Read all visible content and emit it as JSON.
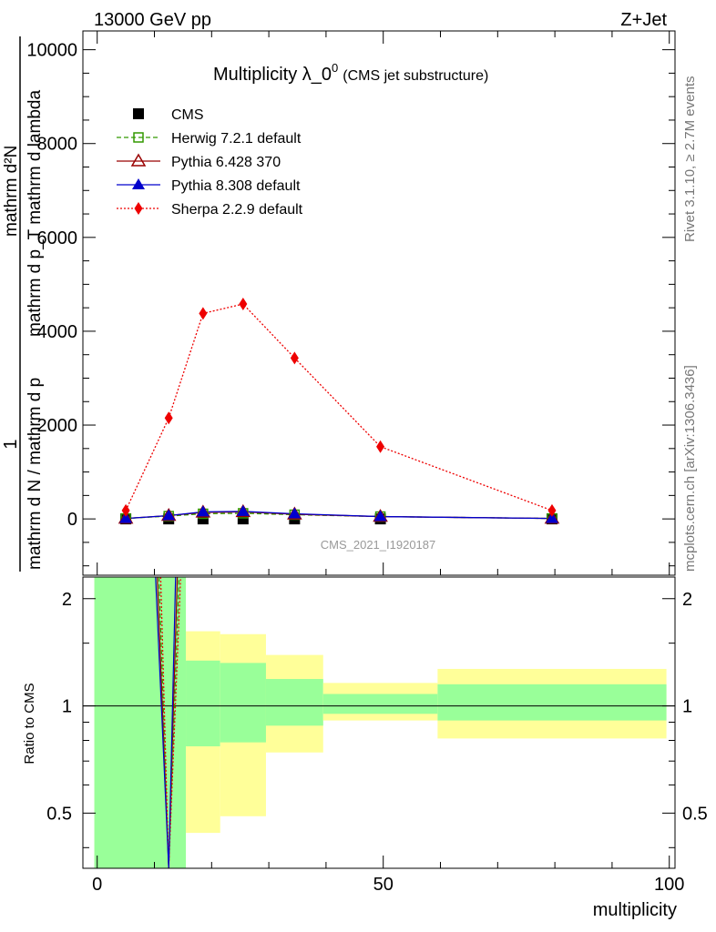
{
  "header": {
    "energy": "13000 GeV pp",
    "process": "Z+Jet"
  },
  "side_labels": {
    "rivet": "Rivet 3.1.10, ≥ 2.7M events",
    "mcplots": "mcplots.cern.ch [arXiv:1306.3436]"
  },
  "colors": {
    "cms": "#000000",
    "herwig": "#339900",
    "pythia6": "#990000",
    "pythia8": "#0000cc",
    "sherpa": "#ee0000",
    "band_stat": "#99ff99",
    "band_total": "#ffff99"
  },
  "chart_data": [
    {
      "type": "line",
      "title": "Multiplicity λ_0",
      "title_superscript": "0",
      "subtitle": "(CMS jet substructure)",
      "watermark": "CMS_2021_I1920187",
      "ylabel": {
        "numerator": "1",
        "denominator": "mathrm d N / mathrm d p",
        "right_numerator": "mathrm d²N",
        "right_denominator": "mathrm d p_T mathrm d lambda",
        "full_text": "1 / mathrm d N / mathrm d p  ·  mathrm d²N / mathrm d p_T mathrm d lambda"
      },
      "xlim": [
        -2.5,
        101
      ],
      "ylim": [
        -1200,
        10400
      ],
      "yticks": [
        0,
        2000,
        4000,
        6000,
        8000,
        10000
      ],
      "ytick_labels": [
        "0",
        "2000",
        "4000",
        "6000",
        "8000",
        "10000"
      ],
      "legend_position": "top-left",
      "series": [
        {
          "name": "CMS",
          "marker": "filled-square",
          "x": [
            5,
            12.5,
            18.5,
            25.5,
            34.5,
            49.5,
            79.5
          ],
          "y": [
            0,
            0,
            0,
            0,
            0,
            0,
            0
          ]
        },
        {
          "name": "Herwig 7.2.1 default",
          "marker": "open-square",
          "line": "dashed",
          "x": [
            5,
            12.5,
            18.5,
            25.5,
            34.5,
            49.5,
            79.5
          ],
          "y": [
            10,
            60,
            110,
            120,
            90,
            50,
            10
          ]
        },
        {
          "name": "Pythia 6.428 370",
          "marker": "open-triangle",
          "line": "solid",
          "x": [
            5,
            12.5,
            18.5,
            25.5,
            34.5,
            49.5,
            79.5
          ],
          "y": [
            10,
            70,
            140,
            150,
            100,
            50,
            10
          ]
        },
        {
          "name": "Pythia 8.308 default",
          "marker": "filled-triangle",
          "line": "solid",
          "x": [
            5,
            12.5,
            18.5,
            25.5,
            34.5,
            49.5,
            79.5
          ],
          "y": [
            10,
            70,
            150,
            160,
            110,
            50,
            10
          ]
        },
        {
          "name": "Sherpa 2.2.9 default",
          "marker": "filled-diamond",
          "line": "dotted",
          "x": [
            5,
            12.5,
            18.5,
            25.5,
            34.5,
            49.5,
            79.5
          ],
          "y": [
            180,
            2150,
            4380,
            4580,
            3430,
            1540,
            180
          ]
        }
      ]
    },
    {
      "type": "area",
      "ylabel": "Ratio to CMS",
      "xlabel": "multiplicity",
      "xlim": [
        -2.5,
        101
      ],
      "ylim": [
        0.35,
        2.3
      ],
      "yscale": "log",
      "xticks": [
        0,
        50,
        100
      ],
      "xtick_labels": [
        "0",
        "50",
        "100"
      ],
      "yticks": [
        0.5,
        1,
        2
      ],
      "ytick_labels": [
        "0.5",
        "1",
        "2"
      ],
      "bands": [
        {
          "x0": -0.5,
          "x1": 15.5,
          "total": [
            0.3,
            3.0
          ],
          "stat": [
            0.3,
            3.0
          ]
        },
        {
          "x0": 15.5,
          "x1": 21.5,
          "total": [
            0.44,
            1.62
          ],
          "stat": [
            0.77,
            1.34
          ]
        },
        {
          "x0": 21.5,
          "x1": 29.5,
          "total": [
            0.49,
            1.59
          ],
          "stat": [
            0.79,
            1.32
          ]
        },
        {
          "x0": 29.5,
          "x1": 39.5,
          "total": [
            0.74,
            1.39
          ],
          "stat": [
            0.88,
            1.19
          ]
        },
        {
          "x0": 39.5,
          "x1": 59.5,
          "total": [
            0.91,
            1.16
          ],
          "stat": [
            0.95,
            1.08
          ]
        },
        {
          "x0": 59.5,
          "x1": 99.5,
          "total": [
            0.81,
            1.27
          ],
          "stat": [
            0.91,
            1.15
          ]
        }
      ],
      "series_ratio_spike": {
        "x_left": 10.5,
        "x_min": 12.5,
        "x_right": 14.0
      }
    }
  ]
}
